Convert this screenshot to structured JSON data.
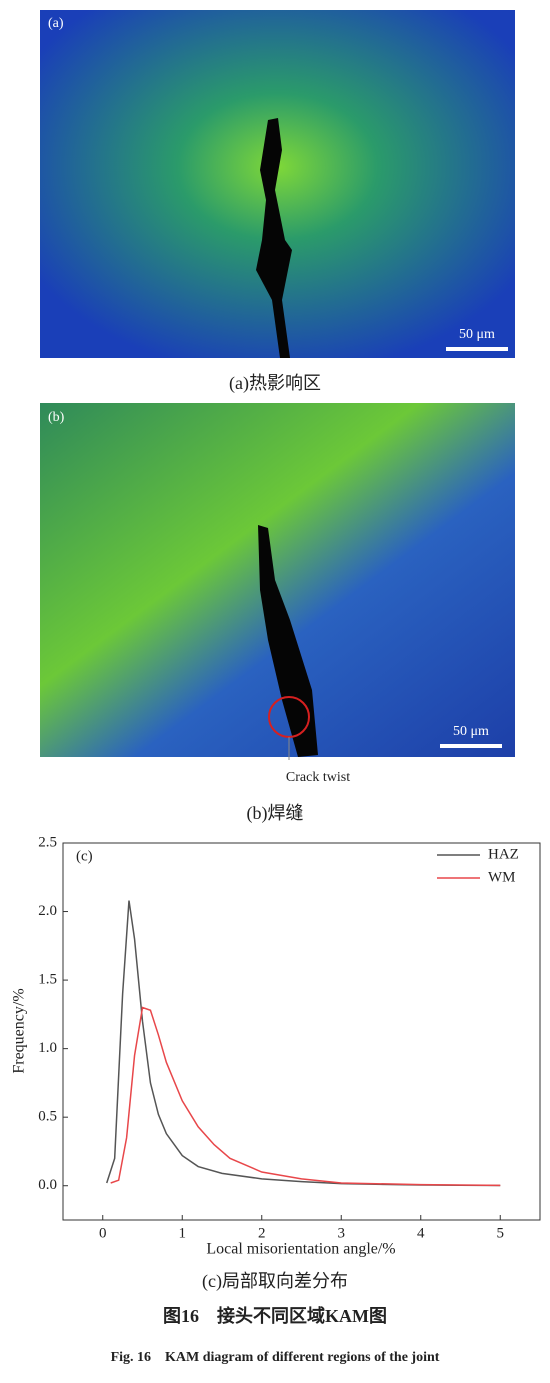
{
  "panels": [
    {
      "label": "(a)",
      "scale_bar": "50 μm",
      "caption": "(a)热影响区"
    },
    {
      "label": "(b)",
      "scale_bar": "50 μm",
      "caption": "(b)焊缝",
      "annotation": "Crack twist"
    }
  ],
  "chart_data": {
    "type": "line",
    "panel_label": "(c)",
    "caption": "(c)局部取向差分布",
    "xlabel": "Local misorientation angle/%",
    "ylabel": "Frequency/%",
    "xlim": [
      -0.5,
      5.5
    ],
    "ylim": [
      -0.25,
      2.5
    ],
    "xticks": [
      0,
      1,
      2,
      3,
      4,
      5
    ],
    "yticks": [
      {
        "value": 0,
        "label": "0.0"
      },
      {
        "value": 0.5,
        "label": "0.5"
      },
      {
        "value": 1,
        "label": "1.0"
      },
      {
        "value": 1.5,
        "label": "1.5"
      },
      {
        "value": 2,
        "label": "2.0"
      },
      {
        "value": 2.5,
        "label": "2.5"
      }
    ],
    "legend": "upper right",
    "series": [
      {
        "name": "HAZ",
        "color": "#555555",
        "x": [
          0.05,
          0.15,
          0.25,
          0.33,
          0.4,
          0.5,
          0.6,
          0.7,
          0.8,
          1.0,
          1.2,
          1.5,
          2,
          2.5,
          3,
          4,
          5
        ],
        "values": [
          0.02,
          0.2,
          1.4,
          2.08,
          1.8,
          1.2,
          0.75,
          0.52,
          0.38,
          0.22,
          0.14,
          0.09,
          0.05,
          0.03,
          0.015,
          0.005,
          0.002
        ]
      },
      {
        "name": "WM",
        "color": "#e8474a",
        "x": [
          0.1,
          0.2,
          0.3,
          0.4,
          0.5,
          0.6,
          0.7,
          0.8,
          1.0,
          1.2,
          1.4,
          1.6,
          2,
          2.5,
          3,
          4,
          5
        ],
        "values": [
          0.02,
          0.04,
          0.35,
          0.95,
          1.3,
          1.28,
          1.1,
          0.9,
          0.62,
          0.43,
          0.3,
          0.2,
          0.1,
          0.05,
          0.02,
          0.008,
          0.003
        ]
      }
    ]
  },
  "figure_title_cn": "图16　接头不同区域KAM图",
  "figure_title_en": "Fig. 16　KAM diagram of different regions of the joint"
}
